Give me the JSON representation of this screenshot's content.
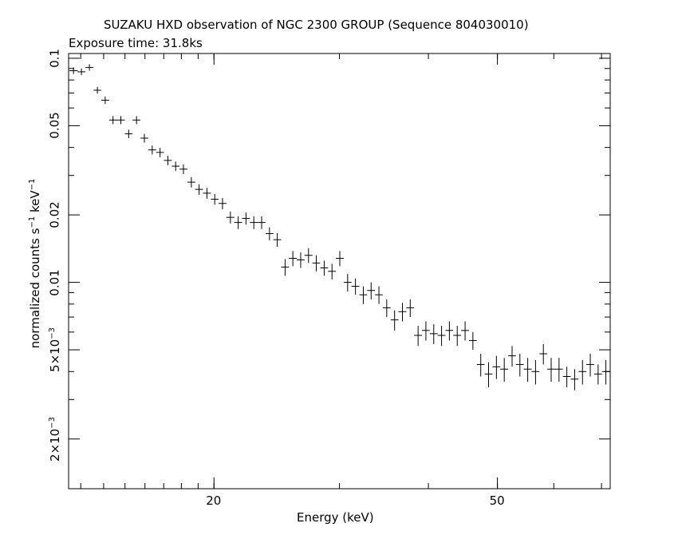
{
  "chart_data": {
    "type": "scatter",
    "title": "SUZAKU HXD observation of NGC 2300 GROUP (Sequence 804030010)",
    "subtitle": "Exposure time: 31.8ks",
    "xlabel": "Energy (keV)",
    "ylabel_main": "normalized counts s",
    "ylabel_sup1": "−1",
    "ylabel_mid": " keV",
    "ylabel_sup2": "−1",
    "xscale": "log",
    "yscale": "log",
    "xlim": [
      12.5,
      72
    ],
    "ylim": [
      0.0012,
      0.105
    ],
    "x_ticks": [
      {
        "value": 20,
        "label": "20"
      },
      {
        "value": 50,
        "label": "50"
      }
    ],
    "y_ticks": [
      {
        "value": 0.1,
        "label": "0.1",
        "mantissa": "",
        "exp": ""
      },
      {
        "value": 0.05,
        "label": "0.05",
        "mantissa": "",
        "exp": ""
      },
      {
        "value": 0.02,
        "label": "0.02",
        "mantissa": "",
        "exp": ""
      },
      {
        "value": 0.01,
        "label": "0.01",
        "mantissa": "",
        "exp": ""
      },
      {
        "value": 0.005,
        "label": "",
        "mantissa": "5×10",
        "exp": "−3"
      },
      {
        "value": 0.002,
        "label": "",
        "mantissa": "2×10",
        "exp": "−3"
      }
    ],
    "series": [
      {
        "marker": "cross",
        "color": "#000000",
        "points": [
          {
            "x": 12.7,
            "dx": 0.17,
            "y": 0.088,
            "dy": 0.003
          },
          {
            "x": 13.03,
            "dx": 0.17,
            "y": 0.087,
            "dy": 0.003
          },
          {
            "x": 13.37,
            "dx": 0.17,
            "y": 0.091,
            "dy": 0.003
          },
          {
            "x": 13.72,
            "dx": 0.17,
            "y": 0.072,
            "dy": 0.0025
          },
          {
            "x": 14.07,
            "dx": 0.18,
            "y": 0.065,
            "dy": 0.0025
          },
          {
            "x": 14.43,
            "dx": 0.18,
            "y": 0.053,
            "dy": 0.0022
          },
          {
            "x": 14.8,
            "dx": 0.19,
            "y": 0.053,
            "dy": 0.0022
          },
          {
            "x": 15.18,
            "dx": 0.19,
            "y": 0.046,
            "dy": 0.002
          },
          {
            "x": 15.57,
            "dx": 0.2,
            "y": 0.053,
            "dy": 0.0022
          },
          {
            "x": 15.97,
            "dx": 0.2,
            "y": 0.044,
            "dy": 0.002
          },
          {
            "x": 16.38,
            "dx": 0.21,
            "y": 0.039,
            "dy": 0.0018
          },
          {
            "x": 16.8,
            "dx": 0.21,
            "y": 0.038,
            "dy": 0.0018
          },
          {
            "x": 17.23,
            "dx": 0.22,
            "y": 0.035,
            "dy": 0.0017
          },
          {
            "x": 17.67,
            "dx": 0.22,
            "y": 0.033,
            "dy": 0.0016
          },
          {
            "x": 18.12,
            "dx": 0.23,
            "y": 0.032,
            "dy": 0.0016
          },
          {
            "x": 18.59,
            "dx": 0.24,
            "y": 0.028,
            "dy": 0.0015
          },
          {
            "x": 19.06,
            "dx": 0.24,
            "y": 0.026,
            "dy": 0.0014
          },
          {
            "x": 19.55,
            "dx": 0.25,
            "y": 0.025,
            "dy": 0.0014
          },
          {
            "x": 20.05,
            "dx": 0.25,
            "y": 0.0235,
            "dy": 0.0013
          },
          {
            "x": 20.56,
            "dx": 0.26,
            "y": 0.0225,
            "dy": 0.0013
          },
          {
            "x": 21.09,
            "dx": 0.27,
            "y": 0.0195,
            "dy": 0.0012
          },
          {
            "x": 21.63,
            "dx": 0.28,
            "y": 0.0185,
            "dy": 0.0012
          },
          {
            "x": 22.18,
            "dx": 0.28,
            "y": 0.0193,
            "dy": 0.0012
          },
          {
            "x": 22.75,
            "dx": 0.29,
            "y": 0.0185,
            "dy": 0.0012
          },
          {
            "x": 23.33,
            "dx": 0.3,
            "y": 0.0185,
            "dy": 0.0012
          },
          {
            "x": 23.93,
            "dx": 0.3,
            "y": 0.0165,
            "dy": 0.0011
          },
          {
            "x": 24.54,
            "dx": 0.31,
            "y": 0.0155,
            "dy": 0.0011
          },
          {
            "x": 25.17,
            "dx": 0.32,
            "y": 0.0117,
            "dy": 0.001
          },
          {
            "x": 25.81,
            "dx": 0.33,
            "y": 0.0128,
            "dy": 0.001
          },
          {
            "x": 26.47,
            "dx": 0.34,
            "y": 0.0126,
            "dy": 0.001
          },
          {
            "x": 27.15,
            "dx": 0.35,
            "y": 0.0132,
            "dy": 0.001
          },
          {
            "x": 27.84,
            "dx": 0.35,
            "y": 0.0122,
            "dy": 0.001
          },
          {
            "x": 28.56,
            "dx": 0.36,
            "y": 0.0116,
            "dy": 0.0009
          },
          {
            "x": 29.29,
            "dx": 0.37,
            "y": 0.0112,
            "dy": 0.0009
          },
          {
            "x": 30.04,
            "dx": 0.38,
            "y": 0.0128,
            "dy": 0.001
          },
          {
            "x": 30.81,
            "dx": 0.39,
            "y": 0.01,
            "dy": 0.0009
          },
          {
            "x": 31.6,
            "dx": 0.4,
            "y": 0.0096,
            "dy": 0.0008
          },
          {
            "x": 32.41,
            "dx": 0.41,
            "y": 0.0088,
            "dy": 0.0008
          },
          {
            "x": 33.24,
            "dx": 0.42,
            "y": 0.0092,
            "dy": 0.0008
          },
          {
            "x": 34.09,
            "dx": 0.43,
            "y": 0.0088,
            "dy": 0.0008
          },
          {
            "x": 34.96,
            "dx": 0.44,
            "y": 0.0077,
            "dy": 0.0007
          },
          {
            "x": 35.86,
            "dx": 0.45,
            "y": 0.0068,
            "dy": 0.0007
          },
          {
            "x": 36.78,
            "dx": 0.47,
            "y": 0.0074,
            "dy": 0.0007
          },
          {
            "x": 37.72,
            "dx": 0.48,
            "y": 0.0077,
            "dy": 0.0007
          },
          {
            "x": 38.69,
            "dx": 0.49,
            "y": 0.0058,
            "dy": 0.0006
          },
          {
            "x": 39.68,
            "dx": 0.5,
            "y": 0.0061,
            "dy": 0.0006
          },
          {
            "x": 40.7,
            "dx": 0.52,
            "y": 0.0059,
            "dy": 0.0006
          },
          {
            "x": 41.74,
            "dx": 0.53,
            "y": 0.0058,
            "dy": 0.0006
          },
          {
            "x": 42.81,
            "dx": 0.54,
            "y": 0.0061,
            "dy": 0.0006
          },
          {
            "x": 43.91,
            "dx": 0.56,
            "y": 0.0058,
            "dy": 0.0006
          },
          {
            "x": 45.04,
            "dx": 0.57,
            "y": 0.0061,
            "dy": 0.0006
          },
          {
            "x": 46.19,
            "dx": 0.58,
            "y": 0.0055,
            "dy": 0.0005
          },
          {
            "x": 47.38,
            "dx": 0.6,
            "y": 0.0043,
            "dy": 0.0005
          },
          {
            "x": 48.59,
            "dx": 0.61,
            "y": 0.0039,
            "dy": 0.0005
          },
          {
            "x": 49.84,
            "dx": 0.63,
            "y": 0.0042,
            "dy": 0.0005
          },
          {
            "x": 51.12,
            "dx": 0.65,
            "y": 0.0041,
            "dy": 0.0005
          },
          {
            "x": 52.43,
            "dx": 0.66,
            "y": 0.0047,
            "dy": 0.0005
          },
          {
            "x": 53.77,
            "dx": 0.68,
            "y": 0.0043,
            "dy": 0.0005
          },
          {
            "x": 55.15,
            "dx": 0.7,
            "y": 0.0041,
            "dy": 0.0005
          },
          {
            "x": 56.56,
            "dx": 0.72,
            "y": 0.004,
            "dy": 0.0005
          },
          {
            "x": 58.01,
            "dx": 0.73,
            "y": 0.0048,
            "dy": 0.0005
          },
          {
            "x": 59.49,
            "dx": 0.75,
            "y": 0.0041,
            "dy": 0.0005
          },
          {
            "x": 61.02,
            "dx": 0.77,
            "y": 0.0041,
            "dy": 0.0005
          },
          {
            "x": 62.58,
            "dx": 0.79,
            "y": 0.0038,
            "dy": 0.0004
          },
          {
            "x": 64.18,
            "dx": 0.81,
            "y": 0.0037,
            "dy": 0.0004
          },
          {
            "x": 65.83,
            "dx": 0.83,
            "y": 0.004,
            "dy": 0.0005
          },
          {
            "x": 67.51,
            "dx": 0.85,
            "y": 0.0043,
            "dy": 0.0005
          },
          {
            "x": 69.24,
            "dx": 0.88,
            "y": 0.0039,
            "dy": 0.0004
          },
          {
            "x": 71.0,
            "dx": 0.9,
            "y": 0.004,
            "dy": 0.0005
          }
        ]
      }
    ]
  }
}
